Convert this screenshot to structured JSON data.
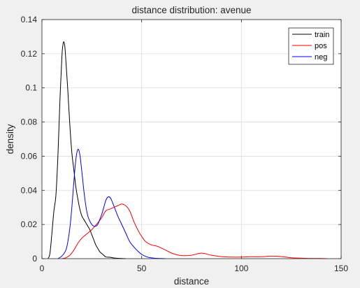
{
  "chart_data": {
    "type": "line",
    "title": "distance distribution: avenue",
    "xlabel": "distance",
    "ylabel": "density",
    "xlim": [
      0,
      150
    ],
    "ylim": [
      0,
      0.14
    ],
    "xticks": [
      0,
      50,
      100,
      150
    ],
    "yticks": [
      0,
      0.02,
      0.04,
      0.06,
      0.08,
      0.1,
      0.12,
      0.14
    ],
    "xtick_labels": [
      "0",
      "50",
      "100",
      "150"
    ],
    "ytick_labels": [
      "0",
      "0.02",
      "0.04",
      "0.06",
      "0.08",
      "0.1",
      "0.12",
      "0.14"
    ],
    "grid": true,
    "legend_position": "top-right",
    "series": [
      {
        "name": "train",
        "color": "#000000",
        "x": [
          3,
          4,
          5,
          6,
          7,
          8,
          9,
          10,
          10.5,
          11,
          11.5,
          12,
          13,
          14,
          15,
          16,
          17,
          18,
          19,
          20,
          21,
          22,
          23,
          24,
          25,
          26,
          27,
          28,
          29,
          30,
          31,
          32,
          34,
          36,
          38,
          40,
          42
        ],
        "y": [
          0,
          0.003,
          0.015,
          0.028,
          0.037,
          0.06,
          0.092,
          0.118,
          0.125,
          0.127,
          0.124,
          0.116,
          0.098,
          0.078,
          0.062,
          0.052,
          0.042,
          0.035,
          0.029,
          0.025,
          0.023,
          0.021,
          0.019,
          0.017,
          0.014,
          0.011,
          0.008,
          0.006,
          0.004,
          0.003,
          0.002,
          0.001,
          0.0008,
          0.0004,
          0.0002,
          0.0001,
          0
        ]
      },
      {
        "name": "pos",
        "color": "#ff0000",
        "x": [
          10,
          12,
          14,
          16,
          18,
          20,
          22,
          25,
          28,
          30,
          32,
          34,
          36,
          38,
          40,
          42,
          44,
          46,
          48,
          50,
          52,
          55,
          58,
          62,
          66,
          70,
          75,
          80,
          85,
          90,
          95,
          100,
          105,
          110,
          115,
          120,
          125,
          130,
          135,
          140,
          143
        ],
        "y": [
          0,
          0.0005,
          0.002,
          0.005,
          0.009,
          0.012,
          0.014,
          0.017,
          0.021,
          0.024,
          0.028,
          0.029,
          0.03,
          0.031,
          0.032,
          0.031,
          0.028,
          0.022,
          0.017,
          0.013,
          0.01,
          0.008,
          0.0072,
          0.005,
          0.0028,
          0.0018,
          0.002,
          0.0032,
          0.002,
          0.0012,
          0.0009,
          0.0009,
          0.0011,
          0.0011,
          0.0015,
          0.0012,
          0.0005,
          0.0003,
          0.0001,
          0.0001,
          0
        ]
      },
      {
        "name": "neg",
        "color": "#0000ff",
        "x": [
          8,
          10,
          12,
          13,
          14,
          15,
          16,
          17,
          18,
          19,
          20,
          21,
          22,
          23,
          24,
          25,
          26,
          27,
          28,
          29,
          30,
          31,
          32,
          33,
          34,
          35,
          36,
          37,
          38,
          40,
          42,
          44,
          46,
          48,
          50,
          52,
          54,
          57,
          60,
          62
        ],
        "y": [
          0,
          0.0015,
          0.005,
          0.01,
          0.018,
          0.03,
          0.045,
          0.058,
          0.064,
          0.061,
          0.051,
          0.04,
          0.031,
          0.025,
          0.022,
          0.02,
          0.019,
          0.019,
          0.02,
          0.023,
          0.026,
          0.03,
          0.034,
          0.036,
          0.036,
          0.034,
          0.031,
          0.028,
          0.025,
          0.02,
          0.015,
          0.01,
          0.007,
          0.0045,
          0.0025,
          0.0013,
          0.0006,
          0.0002,
          0.0001,
          0
        ]
      }
    ]
  }
}
